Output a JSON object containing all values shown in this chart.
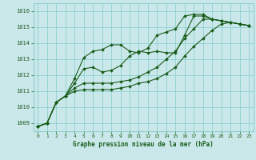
{
  "title": "Graphe pression niveau de la mer (hPa)",
  "bg_color": "#cae8ea",
  "grid_color": "#8ecfcf",
  "line_color": "#1a5c1a",
  "marker_color": "#1a5c1a",
  "xlim": [
    -0.5,
    23.5
  ],
  "ylim": [
    1008.5,
    1016.5
  ],
  "yticks": [
    1009,
    1010,
    1011,
    1012,
    1013,
    1014,
    1015,
    1016
  ],
  "xticks": [
    0,
    1,
    2,
    3,
    4,
    5,
    6,
    7,
    8,
    9,
    10,
    11,
    12,
    13,
    14,
    15,
    16,
    17,
    18,
    19,
    20,
    21,
    22,
    23
  ],
  "series": [
    [
      1008.8,
      1009.0,
      1010.3,
      1010.7,
      1011.8,
      1013.1,
      1013.5,
      1013.6,
      1013.9,
      1013.9,
      1013.5,
      1013.4,
      1013.7,
      1014.5,
      1014.7,
      1014.9,
      1015.7,
      1015.8,
      1015.8,
      1015.5,
      1015.4,
      1015.3,
      1015.2,
      1015.1
    ],
    [
      1008.8,
      1009.0,
      1010.3,
      1010.7,
      1011.5,
      1012.4,
      1012.5,
      1012.2,
      1012.3,
      1012.6,
      1013.2,
      1013.5,
      1013.4,
      1013.5,
      1013.4,
      1013.4,
      1014.5,
      1015.7,
      1015.7,
      1015.5,
      1015.4,
      1015.3,
      1015.2,
      1015.1
    ],
    [
      1008.8,
      1009.0,
      1010.3,
      1010.7,
      1011.2,
      1011.5,
      1011.5,
      1011.5,
      1011.5,
      1011.6,
      1011.7,
      1011.9,
      1012.2,
      1012.5,
      1013.0,
      1013.5,
      1014.3,
      1014.9,
      1015.5,
      1015.5,
      1015.4,
      1015.3,
      1015.2,
      1015.1
    ],
    [
      1008.8,
      1009.0,
      1010.3,
      1010.7,
      1011.0,
      1011.1,
      1011.1,
      1011.1,
      1011.1,
      1011.2,
      1011.3,
      1011.5,
      1011.6,
      1011.8,
      1012.1,
      1012.5,
      1013.2,
      1013.8,
      1014.3,
      1014.8,
      1015.2,
      1015.3,
      1015.2,
      1015.1
    ]
  ]
}
